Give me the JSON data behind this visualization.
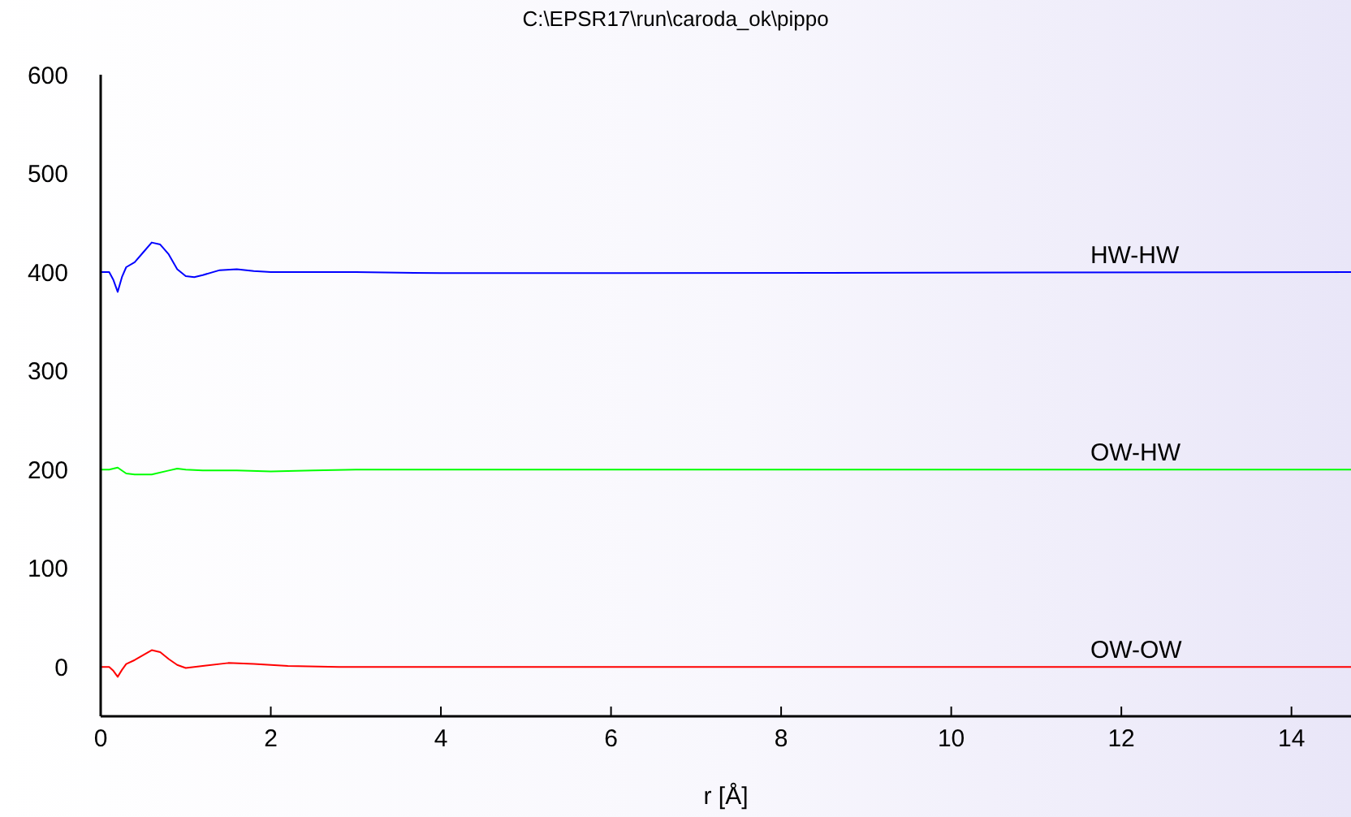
{
  "chart_data": {
    "type": "line",
    "title": "C:\\EPSR17\\run\\caroda_ok\\pippo",
    "xlabel": "r [Å]",
    "xlim": [
      0,
      14.7
    ],
    "xticks": [
      0,
      2,
      4,
      6,
      8,
      10,
      12,
      14
    ],
    "ylim": [
      -50,
      600
    ],
    "yticks": [
      0,
      100,
      200,
      300,
      400,
      500,
      600
    ],
    "marker": "none",
    "line_style": "solid",
    "series": [
      {
        "name": "HW-HW",
        "color": "#0000ff",
        "x": [
          0,
          0.1,
          0.15,
          0.2,
          0.25,
          0.3,
          0.4,
          0.5,
          0.6,
          0.7,
          0.8,
          0.9,
          1.0,
          1.1,
          1.2,
          1.4,
          1.6,
          1.8,
          2.0,
          3.0,
          4.0,
          6.0,
          14.7
        ],
        "values": [
          400,
          400,
          392,
          380,
          395,
          405,
          410,
          420,
          430,
          428,
          418,
          403,
          396,
          395,
          397,
          402,
          403,
          401,
          400,
          400,
          399,
          399,
          400
        ]
      },
      {
        "name": "OW-HW",
        "color": "#00ff00",
        "x": [
          0,
          0.1,
          0.2,
          0.3,
          0.4,
          0.6,
          0.8,
          0.9,
          1.0,
          1.2,
          1.6,
          2.0,
          2.5,
          3.0,
          14.7
        ],
        "values": [
          200,
          200,
          202,
          196,
          195,
          195,
          199,
          201,
          200,
          199,
          199,
          198,
          199,
          200,
          200
        ]
      },
      {
        "name": "OW-OW",
        "color": "#ff0000",
        "x": [
          0,
          0.1,
          0.15,
          0.2,
          0.25,
          0.3,
          0.4,
          0.5,
          0.6,
          0.7,
          0.8,
          0.9,
          1.0,
          1.2,
          1.5,
          1.8,
          2.2,
          2.8,
          14.7
        ],
        "values": [
          0,
          0,
          -4,
          -10,
          -3,
          3,
          7,
          12,
          17,
          15,
          8,
          2,
          -1,
          1,
          4,
          3,
          1,
          0,
          0
        ]
      }
    ]
  }
}
